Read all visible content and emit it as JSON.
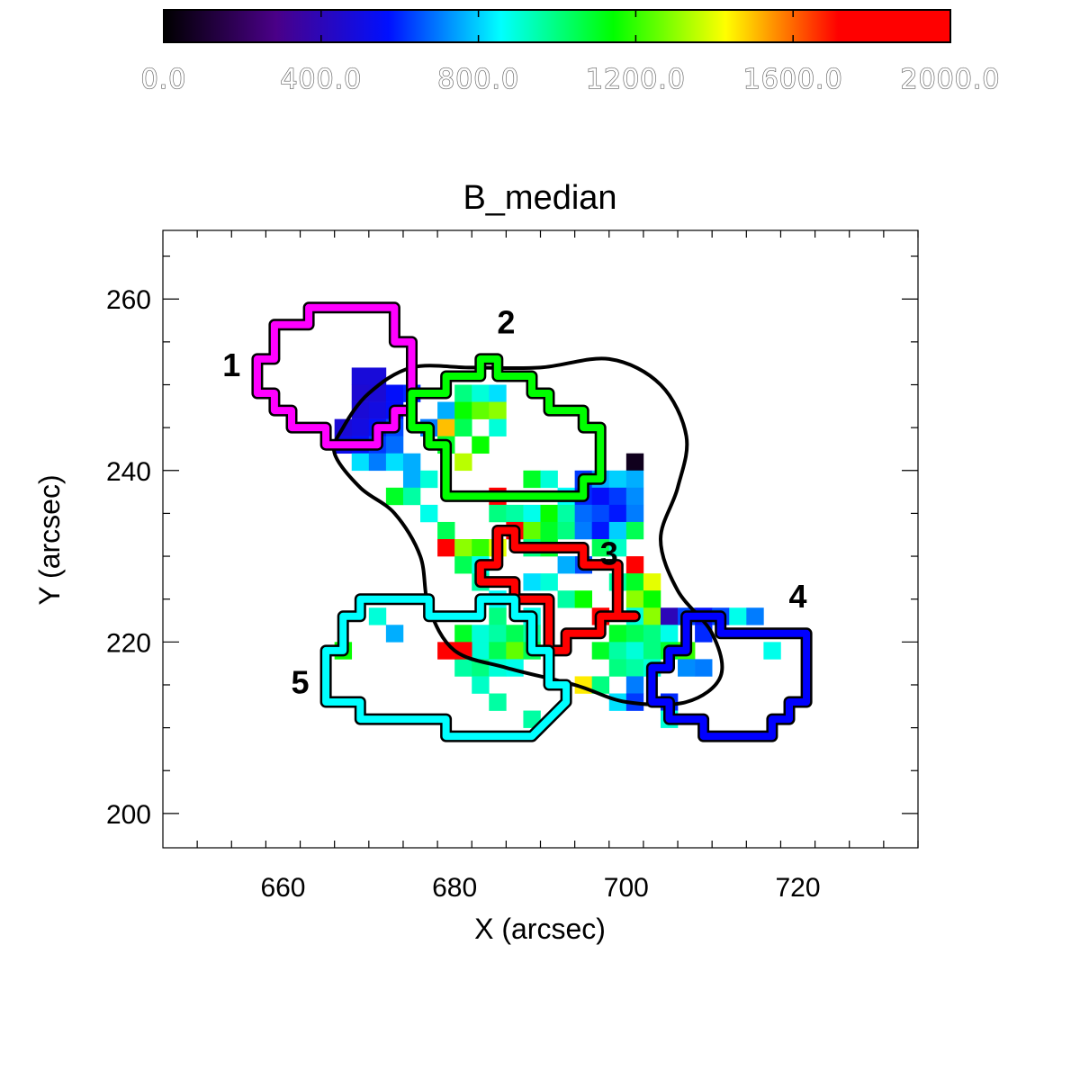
{
  "chart_data": {
    "type": "heatmap",
    "title": "B_median",
    "xlabel": "X (arcsec)",
    "ylabel": "Y (arcsec)",
    "xlim": [
      646,
      734
    ],
    "ylim": [
      196,
      268
    ],
    "xticks": [
      660,
      680,
      700,
      720
    ],
    "yticks": [
      200,
      220,
      240,
      260
    ],
    "pixel_size_arcsec": 2,
    "colorbar": {
      "min": 0,
      "max": 2000,
      "ticks": [
        "0.0",
        "400.0",
        "800.0",
        "1200.0",
        "1600.0",
        "2000.0"
      ],
      "colormap": [
        "#000000",
        "#4a0088",
        "#0010ff",
        "#00ffff",
        "#00ff00",
        "#ffff00",
        "#ff0000",
        "#ff0000"
      ]
    },
    "cells": [
      {
        "x": 669,
        "y": 251,
        "v": 480
      },
      {
        "x": 671,
        "y": 251,
        "v": 480
      },
      {
        "x": 669,
        "y": 249,
        "v": 460
      },
      {
        "x": 671,
        "y": 249,
        "v": 470
      },
      {
        "x": 673,
        "y": 249,
        "v": 560
      },
      {
        "x": 675,
        "y": 249,
        "v": 600
      },
      {
        "x": 669,
        "y": 247,
        "v": 470
      },
      {
        "x": 671,
        "y": 247,
        "v": 500
      },
      {
        "x": 673,
        "y": 247,
        "v": 560
      },
      {
        "x": 667,
        "y": 245,
        "v": 470
      },
      {
        "x": 669,
        "y": 245,
        "v": 500
      },
      {
        "x": 671,
        "y": 245,
        "v": 560
      },
      {
        "x": 673,
        "y": 245,
        "v": 640
      },
      {
        "x": 677,
        "y": 245,
        "v": 700
      },
      {
        "x": 667,
        "y": 243,
        "v": 520
      },
      {
        "x": 669,
        "y": 243,
        "v": 560
      },
      {
        "x": 671,
        "y": 243,
        "v": 620
      },
      {
        "x": 673,
        "y": 243,
        "v": 680
      },
      {
        "x": 679,
        "y": 247,
        "v": 760
      },
      {
        "x": 681,
        "y": 249,
        "v": 1000
      },
      {
        "x": 683,
        "y": 249,
        "v": 900
      },
      {
        "x": 685,
        "y": 249,
        "v": 820
      },
      {
        "x": 681,
        "y": 247,
        "v": 1150
      },
      {
        "x": 683,
        "y": 247,
        "v": 1250
      },
      {
        "x": 685,
        "y": 247,
        "v": 1300
      },
      {
        "x": 679,
        "y": 245,
        "v": 1500
      },
      {
        "x": 681,
        "y": 245,
        "v": 1050
      },
      {
        "x": 685,
        "y": 245,
        "v": 900
      },
      {
        "x": 679,
        "y": 243,
        "v": 1100
      },
      {
        "x": 683,
        "y": 243,
        "v": 1150
      },
      {
        "x": 681,
        "y": 241,
        "v": 1350
      },
      {
        "x": 669,
        "y": 241,
        "v": 820
      },
      {
        "x": 671,
        "y": 241,
        "v": 700
      },
      {
        "x": 673,
        "y": 241,
        "v": 820
      },
      {
        "x": 675,
        "y": 241,
        "v": 760
      },
      {
        "x": 675,
        "y": 239,
        "v": 760
      },
      {
        "x": 677,
        "y": 239,
        "v": 900
      },
      {
        "x": 673,
        "y": 237,
        "v": 1100
      },
      {
        "x": 675,
        "y": 237,
        "v": 960
      },
      {
        "x": 677,
        "y": 235,
        "v": 880
      },
      {
        "x": 679,
        "y": 233,
        "v": 1050
      },
      {
        "x": 689,
        "y": 239,
        "v": 1100
      },
      {
        "x": 691,
        "y": 239,
        "v": 900
      },
      {
        "x": 695,
        "y": 239,
        "v": 620
      },
      {
        "x": 697,
        "y": 239,
        "v": 760
      },
      {
        "x": 699,
        "y": 239,
        "v": 800
      },
      {
        "x": 701,
        "y": 241,
        "v": 60
      },
      {
        "x": 701,
        "y": 239,
        "v": 760
      },
      {
        "x": 693,
        "y": 237,
        "v": 860
      },
      {
        "x": 695,
        "y": 237,
        "v": 600
      },
      {
        "x": 697,
        "y": 237,
        "v": 560
      },
      {
        "x": 699,
        "y": 237,
        "v": 620
      },
      {
        "x": 701,
        "y": 237,
        "v": 720
      },
      {
        "x": 685,
        "y": 237,
        "v": 1900
      },
      {
        "x": 685,
        "y": 235,
        "v": 1000
      },
      {
        "x": 687,
        "y": 235,
        "v": 960
      },
      {
        "x": 689,
        "y": 235,
        "v": 880
      },
      {
        "x": 691,
        "y": 235,
        "v": 1150
      },
      {
        "x": 693,
        "y": 235,
        "v": 960
      },
      {
        "x": 695,
        "y": 235,
        "v": 680
      },
      {
        "x": 697,
        "y": 235,
        "v": 640
      },
      {
        "x": 699,
        "y": 235,
        "v": 580
      },
      {
        "x": 701,
        "y": 235,
        "v": 700
      },
      {
        "x": 687,
        "y": 233,
        "v": 1950
      },
      {
        "x": 689,
        "y": 233,
        "v": 1250
      },
      {
        "x": 691,
        "y": 233,
        "v": 1100
      },
      {
        "x": 693,
        "y": 233,
        "v": 1000
      },
      {
        "x": 695,
        "y": 233,
        "v": 700
      },
      {
        "x": 697,
        "y": 233,
        "v": 580
      },
      {
        "x": 699,
        "y": 233,
        "v": 800
      },
      {
        "x": 701,
        "y": 233,
        "v": 1050
      },
      {
        "x": 679,
        "y": 231,
        "v": 1800
      },
      {
        "x": 681,
        "y": 231,
        "v": 1300
      },
      {
        "x": 683,
        "y": 231,
        "v": 1200
      },
      {
        "x": 685,
        "y": 231,
        "v": 1400
      },
      {
        "x": 689,
        "y": 231,
        "v": 1000
      },
      {
        "x": 691,
        "y": 231,
        "v": 1100
      },
      {
        "x": 697,
        "y": 231,
        "v": 1050
      },
      {
        "x": 699,
        "y": 231,
        "v": 920
      },
      {
        "x": 681,
        "y": 229,
        "v": 1050
      },
      {
        "x": 683,
        "y": 229,
        "v": 880
      },
      {
        "x": 695,
        "y": 229,
        "v": 640
      },
      {
        "x": 693,
        "y": 229,
        "v": 760
      },
      {
        "x": 701,
        "y": 229,
        "v": 1980
      },
      {
        "x": 683,
        "y": 227,
        "v": 960
      },
      {
        "x": 689,
        "y": 227,
        "v": 820
      },
      {
        "x": 691,
        "y": 227,
        "v": 900
      },
      {
        "x": 699,
        "y": 227,
        "v": 960
      },
      {
        "x": 701,
        "y": 227,
        "v": 1100
      },
      {
        "x": 703,
        "y": 227,
        "v": 1400
      },
      {
        "x": 685,
        "y": 225,
        "v": 860
      },
      {
        "x": 693,
        "y": 225,
        "v": 960
      },
      {
        "x": 695,
        "y": 225,
        "v": 1150
      },
      {
        "x": 701,
        "y": 225,
        "v": 1300
      },
      {
        "x": 703,
        "y": 225,
        "v": 1150
      },
      {
        "x": 685,
        "y": 223,
        "v": 1000
      },
      {
        "x": 689,
        "y": 223,
        "v": 880
      },
      {
        "x": 697,
        "y": 223,
        "v": 1950
      },
      {
        "x": 701,
        "y": 223,
        "v": 900
      },
      {
        "x": 703,
        "y": 223,
        "v": 1300
      },
      {
        "x": 705,
        "y": 223,
        "v": 400
      },
      {
        "x": 681,
        "y": 221,
        "v": 1100
      },
      {
        "x": 683,
        "y": 221,
        "v": 900
      },
      {
        "x": 685,
        "y": 221,
        "v": 960
      },
      {
        "x": 687,
        "y": 221,
        "v": 1050
      },
      {
        "x": 689,
        "y": 221,
        "v": 960
      },
      {
        "x": 699,
        "y": 221,
        "v": 1100
      },
      {
        "x": 701,
        "y": 221,
        "v": 1050
      },
      {
        "x": 703,
        "y": 221,
        "v": 1000
      },
      {
        "x": 705,
        "y": 221,
        "v": 880
      },
      {
        "x": 681,
        "y": 219,
        "v": 1000
      },
      {
        "x": 683,
        "y": 219,
        "v": 900
      },
      {
        "x": 685,
        "y": 219,
        "v": 1050
      },
      {
        "x": 687,
        "y": 219,
        "v": 1250
      },
      {
        "x": 689,
        "y": 219,
        "v": 1050
      },
      {
        "x": 697,
        "y": 219,
        "v": 1100
      },
      {
        "x": 699,
        "y": 219,
        "v": 960
      },
      {
        "x": 701,
        "y": 219,
        "v": 900
      },
      {
        "x": 703,
        "y": 219,
        "v": 1000
      },
      {
        "x": 705,
        "y": 219,
        "v": 1100
      },
      {
        "x": 707,
        "y": 219,
        "v": 1200
      },
      {
        "x": 681,
        "y": 217,
        "v": 960
      },
      {
        "x": 683,
        "y": 217,
        "v": 1000
      },
      {
        "x": 685,
        "y": 217,
        "v": 900
      },
      {
        "x": 687,
        "y": 217,
        "v": 880
      },
      {
        "x": 699,
        "y": 217,
        "v": 1000
      },
      {
        "x": 701,
        "y": 217,
        "v": 960
      },
      {
        "x": 703,
        "y": 217,
        "v": 900
      },
      {
        "x": 707,
        "y": 217,
        "v": 720
      },
      {
        "x": 709,
        "y": 217,
        "v": 700
      },
      {
        "x": 683,
        "y": 215,
        "v": 920
      },
      {
        "x": 695,
        "y": 215,
        "v": 1450
      },
      {
        "x": 697,
        "y": 215,
        "v": 1000
      },
      {
        "x": 701,
        "y": 215,
        "v": 700
      },
      {
        "x": 685,
        "y": 213,
        "v": 960
      },
      {
        "x": 699,
        "y": 213,
        "v": 820
      },
      {
        "x": 701,
        "y": 213,
        "v": 620
      },
      {
        "x": 705,
        "y": 213,
        "v": 600
      },
      {
        "x": 705,
        "y": 211,
        "v": 900
      },
      {
        "x": 707,
        "y": 223,
        "v": 640
      },
      {
        "x": 709,
        "y": 223,
        "v": 560
      },
      {
        "x": 711,
        "y": 223,
        "v": 640
      },
      {
        "x": 713,
        "y": 223,
        "v": 880
      },
      {
        "x": 715,
        "y": 223,
        "v": 700
      },
      {
        "x": 709,
        "y": 221,
        "v": 600
      },
      {
        "x": 717,
        "y": 219,
        "v": 880
      },
      {
        "x": 681,
        "y": 219,
        "v": 1750
      },
      {
        "x": 679,
        "y": 219,
        "v": 1800
      },
      {
        "x": 671,
        "y": 223,
        "v": 900
      },
      {
        "x": 673,
        "y": 221,
        "v": 760
      },
      {
        "x": 667,
        "y": 219,
        "v": 1150
      },
      {
        "x": 689,
        "y": 211,
        "v": 960
      }
    ],
    "closed_contour": [
      [
        667,
        245
      ],
      [
        670,
        249
      ],
      [
        675,
        252
      ],
      [
        682,
        252
      ],
      [
        690,
        252
      ],
      [
        698,
        253
      ],
      [
        704,
        250
      ],
      [
        707,
        244
      ],
      [
        706,
        238
      ],
      [
        704,
        232
      ],
      [
        706,
        226
      ],
      [
        710,
        221
      ],
      [
        711,
        216
      ],
      [
        707,
        213
      ],
      [
        700,
        213
      ],
      [
        694,
        215
      ],
      [
        686,
        217
      ],
      [
        680,
        219
      ],
      [
        677,
        224
      ],
      [
        676,
        230
      ],
      [
        673,
        235
      ],
      [
        669,
        238
      ],
      [
        666,
        242
      ],
      [
        667,
        245
      ]
    ],
    "regions": [
      {
        "label": "1",
        "color": "#ff00ff",
        "polygon": [
          [
            663,
            259
          ],
          [
            673,
            259
          ],
          [
            673,
            255
          ],
          [
            675,
            255
          ],
          [
            675,
            247
          ],
          [
            673,
            247
          ],
          [
            673,
            245
          ],
          [
            671,
            245
          ],
          [
            671,
            243
          ],
          [
            665,
            243
          ],
          [
            665,
            245
          ],
          [
            661,
            245
          ],
          [
            661,
            247
          ],
          [
            659,
            247
          ],
          [
            659,
            249
          ],
          [
            657,
            249
          ],
          [
            657,
            253
          ],
          [
            659,
            253
          ],
          [
            659,
            257
          ],
          [
            663,
            257
          ]
        ]
      },
      {
        "label": "2",
        "color": "#00ff00",
        "polygon": [
          [
            683,
            253
          ],
          [
            685,
            253
          ],
          [
            685,
            251
          ],
          [
            689,
            251
          ],
          [
            689,
            249
          ],
          [
            691,
            249
          ],
          [
            691,
            247
          ],
          [
            695,
            247
          ],
          [
            695,
            245
          ],
          [
            697,
            245
          ],
          [
            697,
            239
          ],
          [
            695,
            239
          ],
          [
            695,
            237
          ],
          [
            679,
            237
          ],
          [
            679,
            243
          ],
          [
            677,
            243
          ],
          [
            677,
            245
          ],
          [
            675,
            245
          ],
          [
            675,
            249
          ],
          [
            679,
            249
          ],
          [
            679,
            251
          ],
          [
            683,
            251
          ]
        ]
      },
      {
        "label": "3",
        "color": "#ff0000",
        "polygon": [
          [
            685,
            233
          ],
          [
            687,
            233
          ],
          [
            687,
            231
          ],
          [
            695,
            231
          ],
          [
            695,
            229
          ],
          [
            699,
            229
          ],
          [
            699,
            223
          ],
          [
            701,
            223
          ],
          [
            697,
            223
          ],
          [
            697,
            221
          ],
          [
            693,
            221
          ],
          [
            693,
            219
          ],
          [
            691,
            219
          ],
          [
            691,
            225
          ],
          [
            687,
            225
          ],
          [
            687,
            227
          ],
          [
            683,
            227
          ],
          [
            683,
            229
          ],
          [
            685,
            229
          ]
        ]
      },
      {
        "label": "4",
        "color": "#0000ff",
        "polygon": [
          [
            707,
            223
          ],
          [
            711,
            223
          ],
          [
            711,
            221
          ],
          [
            721,
            221
          ],
          [
            721,
            213
          ],
          [
            719,
            213
          ],
          [
            719,
            211
          ],
          [
            717,
            211
          ],
          [
            717,
            209
          ],
          [
            709,
            209
          ],
          [
            709,
            211
          ],
          [
            705,
            211
          ],
          [
            705,
            213
          ],
          [
            703,
            213
          ],
          [
            703,
            217
          ],
          [
            705,
            217
          ],
          [
            705,
            219
          ],
          [
            707,
            219
          ]
        ]
      },
      {
        "label": "5",
        "color": "#00ffff",
        "polygon": [
          [
            669,
            225
          ],
          [
            677,
            225
          ],
          [
            677,
            223
          ],
          [
            683,
            223
          ],
          [
            683,
            225
          ],
          [
            687,
            225
          ],
          [
            687,
            223
          ],
          [
            689,
            223
          ],
          [
            689,
            219
          ],
          [
            691,
            219
          ],
          [
            691,
            215
          ],
          [
            693,
            215
          ],
          [
            693,
            213
          ],
          [
            689,
            209
          ],
          [
            679,
            209
          ],
          [
            679,
            211
          ],
          [
            669,
            211
          ],
          [
            669,
            213
          ],
          [
            665,
            213
          ],
          [
            665,
            219
          ],
          [
            667,
            219
          ],
          [
            667,
            223
          ],
          [
            669,
            223
          ]
        ]
      }
    ],
    "region_label_positions": [
      {
        "label": "1",
        "x": 654,
        "y": 251
      },
      {
        "label": "2",
        "x": 686,
        "y": 256
      },
      {
        "label": "3",
        "x": 698,
        "y": 229
      },
      {
        "label": "4",
        "x": 720,
        "y": 224
      },
      {
        "label": "5",
        "x": 662,
        "y": 214
      }
    ]
  }
}
